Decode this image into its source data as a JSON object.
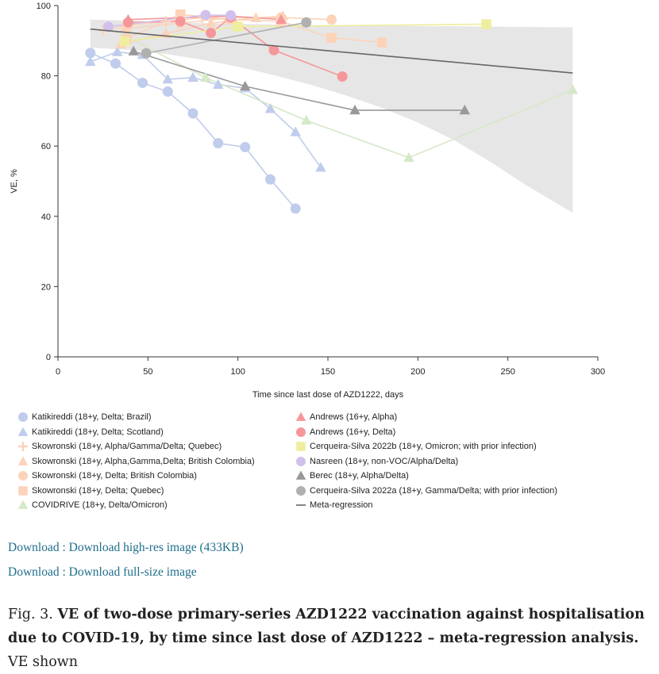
{
  "links": [
    {
      "label": "Download",
      "sep": " : ",
      "text": "Download high-res image (433KB)"
    },
    {
      "label": "Download",
      "sep": " : ",
      "text": "Download full-size image"
    }
  ],
  "caption": {
    "prefix": "Fig. 3.",
    "bold": "VE of two-dose primary-series AZD1222 vaccination against hospitalisation due to COVID-19, by time since last dose of AZD1222 – meta-regression analysis.",
    "rest": "VE shown"
  },
  "chart_data": {
    "type": "scatter",
    "title": "",
    "xlabel": "Time since last dose of AZD1222, days",
    "ylabel": "VE, %",
    "xlim": [
      0,
      300
    ],
    "ylim": [
      0,
      100
    ],
    "xticks": [
      0,
      50,
      100,
      150,
      200,
      250,
      300
    ],
    "yticks": [
      0,
      20,
      40,
      60,
      80,
      100
    ],
    "grid": false,
    "legend_position": "bottom",
    "band": {
      "x": [
        18,
        40,
        60,
        80,
        100,
        120,
        140,
        160,
        180,
        200,
        220,
        240,
        260,
        286
      ],
      "upper": [
        96,
        95.7,
        95.3,
        95,
        94.8,
        94.6,
        94.5,
        94.4,
        94.3,
        94.2,
        94.1,
        94,
        93.9,
        93.8
      ],
      "lower": [
        88,
        87.4,
        86.2,
        84.6,
        82.6,
        80.2,
        77.5,
        74.4,
        70.9,
        66.7,
        61.7,
        55.6,
        48.9,
        41
      ]
    },
    "regression": {
      "name": "Meta-regression",
      "x": [
        18,
        286
      ],
      "y": [
        93.3,
        80.8
      ],
      "color": "#666666"
    },
    "series": [
      {
        "name": "Katikireddi (18+y, Delta; Brazil)",
        "marker": "circle",
        "color": "#c0ccec",
        "x": [
          18,
          32,
          47,
          61,
          75,
          89,
          104,
          118,
          132
        ],
        "y": [
          86.5,
          83.5,
          78,
          75.5,
          69.3,
          60.8,
          59.7,
          50.5,
          42.2
        ]
      },
      {
        "name": "Katikireddi (18+y, Delta; Scotland)",
        "marker": "triangle",
        "color": "#c0ccec",
        "x": [
          18,
          33,
          47,
          61,
          75,
          89,
          104,
          118,
          132,
          146
        ],
        "y": [
          84,
          86.8,
          86,
          79,
          79.5,
          77.5,
          76.5,
          70.6,
          64,
          53.9
        ]
      },
      {
        "name": "Skowronski (18+y, Alpha/Gamma/Delta; Quebec)",
        "marker": "plus",
        "color": "#fcd3b9",
        "x": [
          25,
          40,
          60,
          80,
          95
        ],
        "y": [
          93,
          94.5,
          95.5,
          96.5,
          96
        ]
      },
      {
        "name": "Skowronski (18+y, Alpha,Gamma,Delta; British Colombia)",
        "marker": "triangle",
        "color": "#fcd3b9",
        "x": [
          35,
          60,
          85,
          110,
          125
        ],
        "y": [
          89,
          92,
          95,
          96.5,
          97
        ]
      },
      {
        "name": "Skowronski (18+y, Delta; British Colombia)",
        "marker": "circle",
        "color": "#fcd3b9",
        "x": [
          38,
          68,
          96,
          124,
          152
        ],
        "y": [
          93.5,
          95,
          96.5,
          96.6,
          96
        ]
      },
      {
        "name": "Skowronski (18+y, Delta; Quebec)",
        "marker": "square",
        "color": "#fcd3b9",
        "x": [
          38,
          68,
          96,
          124,
          152,
          180
        ],
        "y": [
          90.5,
          97.5,
          96,
          95.5,
          90.8,
          89.5
        ]
      },
      {
        "name": "COVIDRIVE (18+y, Delta/Omicron)",
        "marker": "triangle",
        "color": "#d5e8c8",
        "x": [
          27,
          82,
          138,
          195,
          286
        ],
        "y": [
          94,
          79.5,
          67.3,
          56.7,
          76
        ]
      },
      {
        "name": "Andrews (16+y, Alpha)",
        "marker": "triangle",
        "color": "#f5979a",
        "x": [
          39,
          96,
          124
        ],
        "y": [
          96,
          97,
          96
        ]
      },
      {
        "name": "Andrews (16+y, Delta)",
        "marker": "circle",
        "color": "#f5979a",
        "x": [
          39,
          68,
          85,
          96,
          120,
          158
        ],
        "y": [
          95.2,
          95.5,
          92.2,
          96.6,
          87.3,
          79.8
        ]
      },
      {
        "name": "Cerqueira-Silva 2022b (18+y, Omicron; with prior infection)",
        "marker": "square",
        "color": "#eeee9e",
        "x": [
          37,
          100,
          238
        ],
        "y": [
          89.8,
          94,
          94.7
        ]
      },
      {
        "name": "Nasreen (18+y, non-VOC/Alpha/Delta)",
        "marker": "circle",
        "color": "#d2c0ec",
        "x": [
          28,
          82,
          96
        ],
        "y": [
          94,
          97.3,
          97.2
        ]
      },
      {
        "name": "Berec (18+y, Alpha/Delta)",
        "marker": "triangle",
        "color": "#999999",
        "x": [
          42,
          104,
          165,
          226
        ],
        "y": [
          87,
          77,
          70.2,
          70.2
        ]
      },
      {
        "name": "Cerqueira-Silva 2022a (18+y, Gamma/Delta; with prior infection)",
        "marker": "circle",
        "color": "#b0b0b0",
        "x": [
          49,
          138
        ],
        "y": [
          86.4,
          95.2
        ]
      }
    ],
    "regression_legend": "Meta-regression"
  }
}
